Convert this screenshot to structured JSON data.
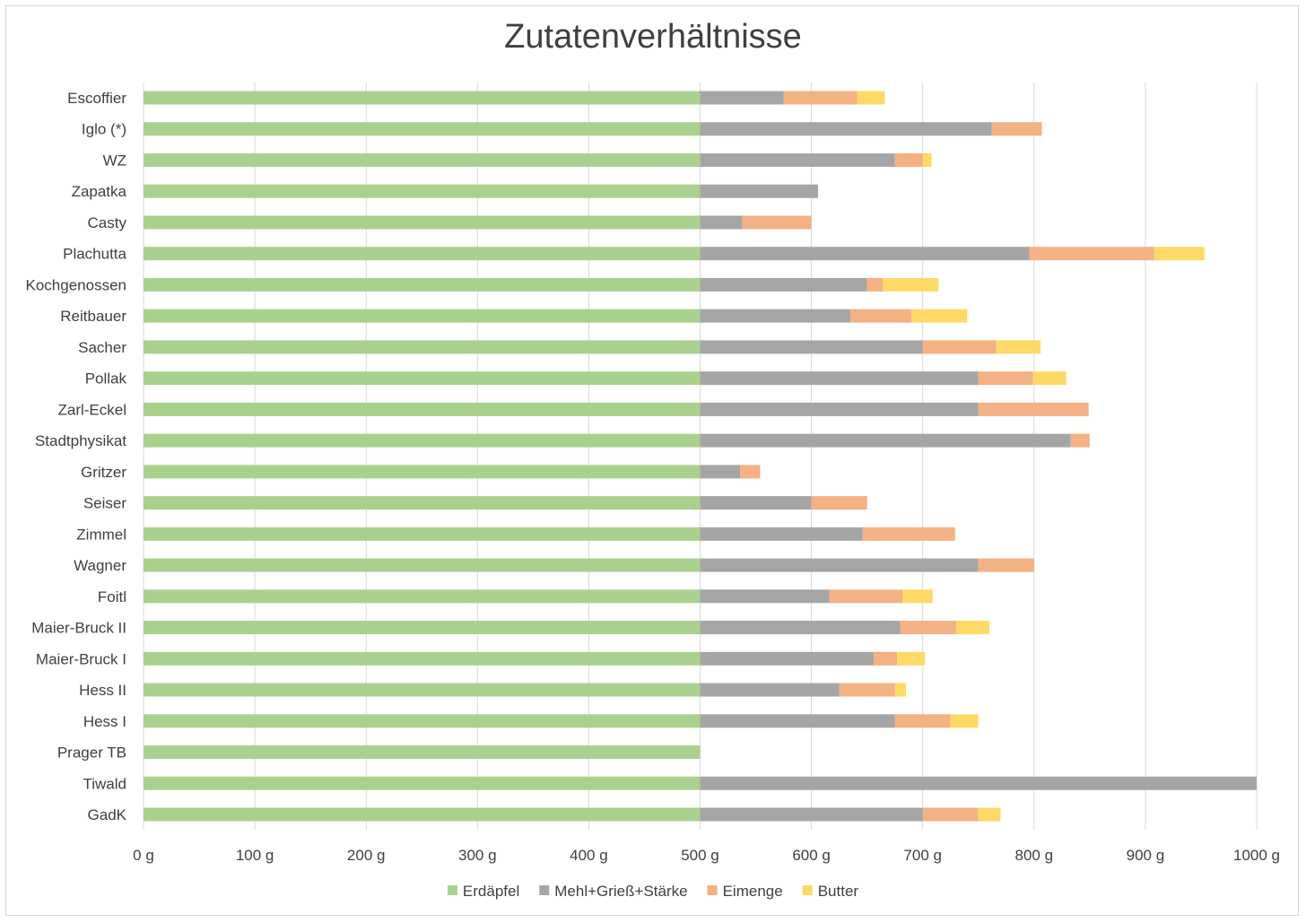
{
  "chart_data": {
    "type": "bar",
    "orientation": "horizontal",
    "stacked": true,
    "title": "Zutatenverhältnisse",
    "xlabel": "",
    "ylabel": "",
    "xlim": [
      0,
      1000
    ],
    "x_ticks": [
      "0 g",
      "100 g",
      "200 g",
      "300 g",
      "400 g",
      "500 g",
      "600 g",
      "700 g",
      "800 g",
      "900 g",
      "1000 g"
    ],
    "x_tick_values": [
      0,
      100,
      200,
      300,
      400,
      500,
      600,
      700,
      800,
      900,
      1000
    ],
    "grid": true,
    "legend": "bottom",
    "categories": [
      "Escoffier",
      "Iglo (*)",
      "WZ",
      "Zapatka",
      "Casty",
      "Plachutta",
      "Kochgenossen",
      "Reitbauer",
      "Sacher",
      "Pollak",
      "Zarl-Eckel",
      "Stadtphysikat",
      "Gritzer",
      "Seiser",
      "Zimmel",
      "Wagner",
      "Foitl",
      "Maier-Bruck II",
      "Maier-Bruck I",
      "Hess II",
      "Hess I",
      "Prager TB",
      "Tiwald",
      "GadK"
    ],
    "series": [
      {
        "name": "Erdäpfel",
        "color": "#a9d18e",
        "values": [
          500,
          500,
          500,
          500,
          500,
          500,
          500,
          500,
          500,
          500,
          500,
          500,
          500,
          500,
          500,
          500,
          500,
          500,
          500,
          500,
          500,
          500,
          500,
          500
        ]
      },
      {
        "name": "Mehl+Grieß+Stärke",
        "color": "#a5a5a5",
        "values": [
          75,
          262,
          175,
          106,
          38,
          296,
          150,
          135,
          200,
          250,
          250,
          333,
          36,
          100,
          146,
          250,
          116,
          180,
          156,
          125,
          175,
          0,
          500,
          200
        ]
      },
      {
        "name": "Eimenge",
        "color": "#f4b183",
        "values": [
          66,
          45,
          25,
          0,
          62,
          112,
          14,
          55,
          66,
          49,
          99,
          17,
          18,
          50,
          83,
          50,
          66,
          50,
          21,
          50,
          50,
          0,
          0,
          50
        ]
      },
      {
        "name": "Butter",
        "color": "#ffd966",
        "values": [
          25,
          0,
          8,
          0,
          0,
          45,
          50,
          50,
          40,
          30,
          0,
          0,
          0,
          0,
          0,
          0,
          27,
          30,
          25,
          10,
          25,
          0,
          0,
          20
        ]
      }
    ]
  }
}
